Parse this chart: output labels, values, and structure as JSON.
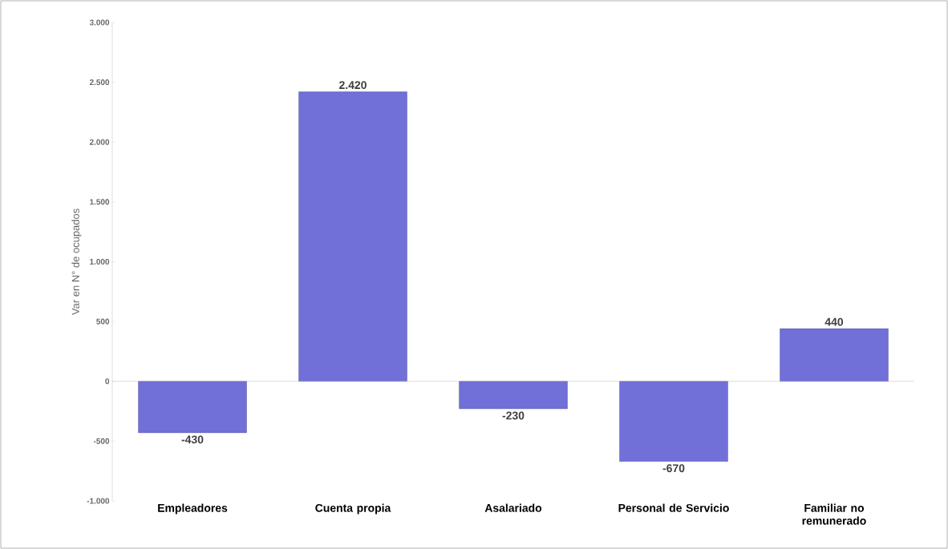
{
  "chart_data": {
    "type": "bar",
    "ylabel": "Var en N° de ocupados",
    "categories": [
      "Empleadores",
      "Cuenta propia",
      "Asalariado",
      "Personal de Servicio",
      "Familiar no remunerado"
    ],
    "values": [
      -430,
      2420,
      -230,
      -670,
      440
    ],
    "value_labels": [
      "-430",
      "2.420",
      "-230",
      "-670",
      "440"
    ],
    "color": "#7070d8",
    "ylim": [
      -1000,
      3000
    ],
    "yticks": [
      {
        "value": -1000,
        "label": "-1.000"
      },
      {
        "value": -500,
        "label": "-500"
      },
      {
        "value": 0,
        "label": "0"
      },
      {
        "value": 500,
        "label": "500"
      },
      {
        "value": 1000,
        "label": "1.000"
      },
      {
        "value": 1500,
        "label": "1.500"
      },
      {
        "value": 2000,
        "label": "2.000"
      },
      {
        "value": 2500,
        "label": "2.500"
      },
      {
        "value": 3000,
        "label": "3.000"
      }
    ]
  }
}
